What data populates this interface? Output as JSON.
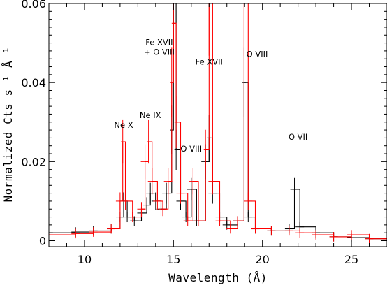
{
  "chart_data": {
    "type": "line",
    "title": "",
    "xlabel": "Wavelength (Å)",
    "ylabel": "Normalized Cts s⁻¹ Å⁻¹",
    "xlim": [
      8,
      27
    ],
    "ylim": [
      -0.0015,
      0.06
    ],
    "x_ticks": [
      10,
      15,
      20,
      25
    ],
    "x_tick_labels": [
      "10",
      "15",
      "20",
      "25"
    ],
    "y_ticks": [
      0,
      0.02,
      0.04,
      0.06
    ],
    "y_tick_labels": [
      "0",
      "0.02",
      "0.04",
      "0.06"
    ],
    "grid": false,
    "series": [
      {
        "color": "#000000",
        "style": "step-model-with-crosses",
        "points": [
          [
            8.0,
            0.002
          ],
          [
            9.5,
            0.0022
          ],
          [
            10.5,
            0.0025
          ],
          [
            11.5,
            0.003
          ],
          [
            12.0,
            0.006
          ],
          [
            12.2,
            0.01
          ],
          [
            12.4,
            0.006
          ],
          [
            12.8,
            0.005
          ],
          [
            13.2,
            0.007
          ],
          [
            13.5,
            0.009
          ],
          [
            13.7,
            0.012
          ],
          [
            14.0,
            0.01
          ],
          [
            14.3,
            0.008
          ],
          [
            14.6,
            0.012
          ],
          [
            14.9,
            0.028
          ],
          [
            15.0,
            0.06
          ],
          [
            15.15,
            0.023
          ],
          [
            15.4,
            0.01
          ],
          [
            15.7,
            0.006
          ],
          [
            16.0,
            0.013
          ],
          [
            16.3,
            0.005
          ],
          [
            16.8,
            0.02
          ],
          [
            17.0,
            0.026
          ],
          [
            17.2,
            0.012
          ],
          [
            17.6,
            0.006
          ],
          [
            18.0,
            0.004
          ],
          [
            18.6,
            0.005
          ],
          [
            18.97,
            0.04
          ],
          [
            19.2,
            0.006
          ],
          [
            19.6,
            0.003
          ],
          [
            20.5,
            0.0025
          ],
          [
            21.5,
            0.003
          ],
          [
            21.8,
            0.013
          ],
          [
            22.1,
            0.0035
          ],
          [
            23.0,
            0.002
          ],
          [
            24.0,
            0.001
          ],
          [
            25.0,
            0.0008
          ],
          [
            26.0,
            0.0005
          ],
          [
            27.0,
            0.0005
          ]
        ]
      },
      {
        "color": "#ff0000",
        "style": "step-model-with-crosses",
        "points": [
          [
            8.0,
            0.0015
          ],
          [
            9.5,
            0.0018
          ],
          [
            10.5,
            0.0022
          ],
          [
            11.5,
            0.003
          ],
          [
            12.0,
            0.01
          ],
          [
            12.15,
            0.025
          ],
          [
            12.3,
            0.01
          ],
          [
            12.7,
            0.006
          ],
          [
            13.2,
            0.008
          ],
          [
            13.4,
            0.02
          ],
          [
            13.6,
            0.025
          ],
          [
            13.8,
            0.015
          ],
          [
            14.1,
            0.01
          ],
          [
            14.4,
            0.008
          ],
          [
            14.7,
            0.015
          ],
          [
            14.9,
            0.04
          ],
          [
            15.0,
            0.055
          ],
          [
            15.15,
            0.03
          ],
          [
            15.4,
            0.012
          ],
          [
            15.8,
            0.005
          ],
          [
            16.1,
            0.015
          ],
          [
            16.4,
            0.005
          ],
          [
            16.8,
            0.023
          ],
          [
            17.0,
            0.06
          ],
          [
            17.2,
            0.015
          ],
          [
            17.6,
            0.005
          ],
          [
            18.2,
            0.003
          ],
          [
            18.6,
            0.005
          ],
          [
            18.97,
            0.06
          ],
          [
            19.2,
            0.01
          ],
          [
            19.6,
            0.003
          ],
          [
            20.5,
            0.0025
          ],
          [
            21.5,
            0.0025
          ],
          [
            22.1,
            0.002
          ],
          [
            23.0,
            0.0015
          ],
          [
            24.0,
            0.001
          ],
          [
            25.0,
            0.0015
          ],
          [
            26.0,
            0.0005
          ],
          [
            27.0,
            0.0005
          ]
        ]
      }
    ],
    "annotations": [
      {
        "text": "Ne X",
        "x": 12.2,
        "y": 0.0285
      },
      {
        "text": "Ne IX",
        "x": 13.7,
        "y": 0.031
      },
      {
        "text": "Fe XVII",
        "x": 14.2,
        "y": 0.0495
      },
      {
        "text": "+ O VIII",
        "x": 14.2,
        "y": 0.047
      },
      {
        "text": "O VIII",
        "x": 16.0,
        "y": 0.0225
      },
      {
        "text": "Fe XVII",
        "x": 17.0,
        "y": 0.0445
      },
      {
        "text": "O VIII",
        "x": 19.7,
        "y": 0.0465
      },
      {
        "text": "O VII",
        "x": 22.0,
        "y": 0.0255
      }
    ]
  }
}
